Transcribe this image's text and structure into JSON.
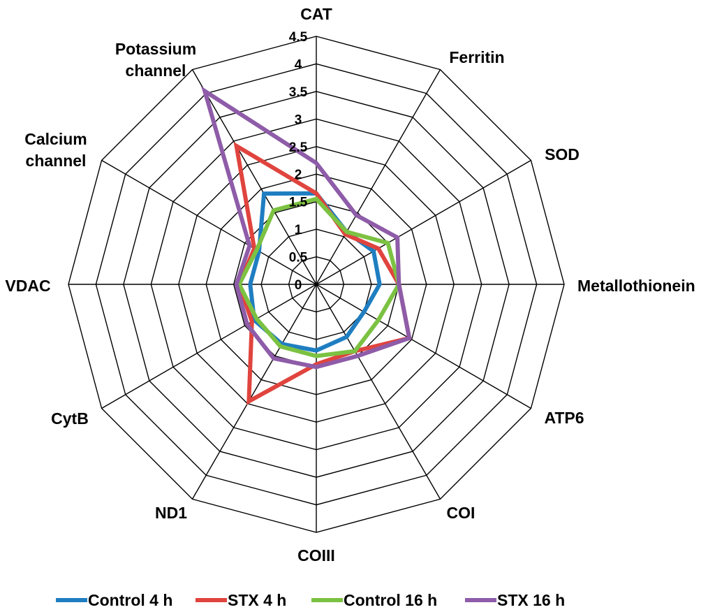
{
  "chart_data": {
    "type": "radar",
    "title": "",
    "axes": [
      "CAT",
      "Ferritin",
      "SOD",
      "Metallothionein",
      "ATP6",
      "COI",
      "COIII",
      "ND1",
      "CytB",
      "VDAC",
      "Calcium channel",
      "Potassium channel"
    ],
    "r_range": [
      0,
      4.5
    ],
    "r_ticks": [
      "0",
      "0.5",
      "1",
      "1.5",
      "2",
      "2.5",
      "3",
      "3.5",
      "4",
      "4.5"
    ],
    "grid": true,
    "legend_position": "bottom",
    "series": [
      {
        "name": "Control 4 h",
        "color": "#1f7ec1",
        "values": [
          1.65,
          1.1,
          1.2,
          1.15,
          1.0,
          1.1,
          1.2,
          1.25,
          1.3,
          1.2,
          1.2,
          1.9
        ]
      },
      {
        "name": "STX 4 h",
        "color": "#e0443e",
        "values": [
          1.65,
          1.05,
          1.3,
          1.5,
          1.95,
          1.4,
          1.45,
          2.45,
          1.35,
          1.4,
          1.3,
          2.9
        ]
      },
      {
        "name": "Control 16 h",
        "color": "#7cc242",
        "values": [
          1.55,
          1.1,
          1.5,
          1.5,
          1.3,
          1.4,
          1.3,
          1.3,
          1.25,
          1.4,
          1.25,
          1.55
        ]
      },
      {
        "name": "STX 16 h",
        "color": "#8e5ca8",
        "values": [
          2.2,
          1.45,
          1.7,
          1.5,
          1.95,
          1.5,
          1.5,
          1.55,
          1.45,
          1.45,
          1.4,
          4.05
        ]
      }
    ]
  }
}
